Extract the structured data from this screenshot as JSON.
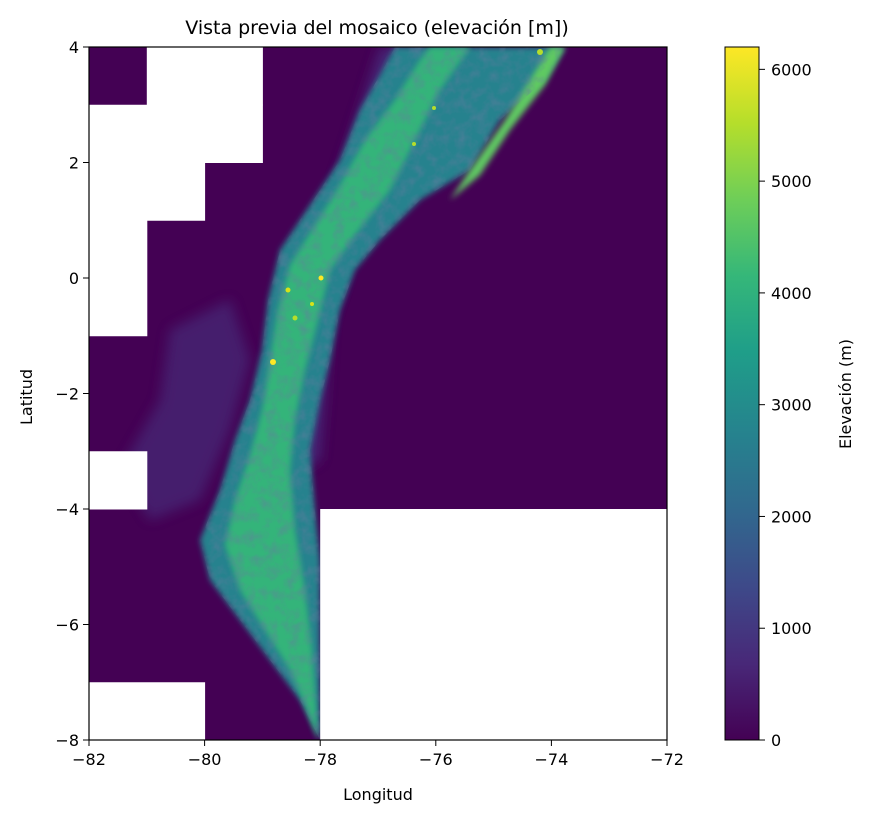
{
  "chart_data": {
    "type": "heatmap",
    "title": "Vista previa del mosaico (elevación [m])",
    "xlabel": "Longitud",
    "ylabel": "Latitud",
    "xlim": [
      -82,
      -72
    ],
    "ylim": [
      -8,
      4
    ],
    "xticks": [
      -82,
      -80,
      -78,
      -76,
      -74,
      -72
    ],
    "xtick_labels": [
      "−82",
      "−80",
      "−78",
      "−76",
      "−74",
      "−72"
    ],
    "yticks": [
      4,
      2,
      0,
      -2,
      -4,
      -6,
      -8
    ],
    "ytick_labels": [
      "4",
      "2",
      "0",
      "−2",
      "−4",
      "−6",
      "−8"
    ],
    "colorbar": {
      "label": "Elevación (m)",
      "colormap": "viridis",
      "range": [
        0,
        6200
      ],
      "ticks": [
        0,
        1000,
        2000,
        3000,
        4000,
        5000,
        6000
      ],
      "tick_labels": [
        "0",
        "1000",
        "2000",
        "3000",
        "4000",
        "5000",
        "6000"
      ]
    },
    "nodata_tiles": [
      {
        "lon": [
          -81,
          -79
        ],
        "lat": [
          3,
          4
        ]
      },
      {
        "lon": [
          -82,
          -79
        ],
        "lat": [
          2,
          3
        ]
      },
      {
        "lon": [
          -82,
          -80
        ],
        "lat": [
          1,
          2
        ]
      },
      {
        "lon": [
          -82,
          -81
        ],
        "lat": [
          -1,
          1
        ]
      },
      {
        "lon": [
          -82,
          -81
        ],
        "lat": [
          -4,
          -3
        ]
      },
      {
        "lon": [
          -78,
          -72
        ],
        "lat": [
          -8,
          -4
        ]
      },
      {
        "lon": [
          -82,
          -80
        ],
        "lat": [
          -8,
          -7
        ]
      }
    ],
    "colors": {
      "lowland": "#440154",
      "mid": "#31688e",
      "high": "#35b779",
      "peak": "#fde725",
      "nodata": "#ffffff"
    }
  }
}
